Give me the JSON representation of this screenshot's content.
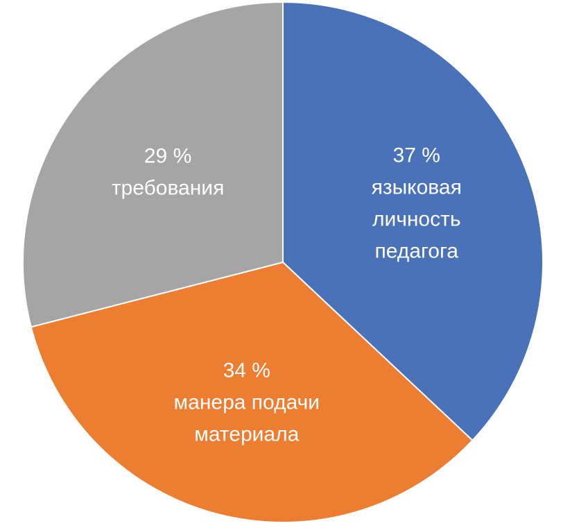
{
  "chart_data": {
    "type": "pie",
    "start_angle_deg": 0,
    "direction": "clockwise",
    "slices": [
      {
        "value": 37,
        "value_label": "37 %",
        "label_lines": [
          "языковая",
          "личность",
          "педагога"
        ],
        "color": "#4A72B8"
      },
      {
        "value": 34,
        "value_label": "34 %",
        "label_lines": [
          "манера подачи",
          "материала"
        ],
        "color": "#ED7D31"
      },
      {
        "value": 29,
        "value_label": "29 %",
        "label_lines": [
          "требования"
        ],
        "color": "#A5A5A5"
      }
    ]
  }
}
